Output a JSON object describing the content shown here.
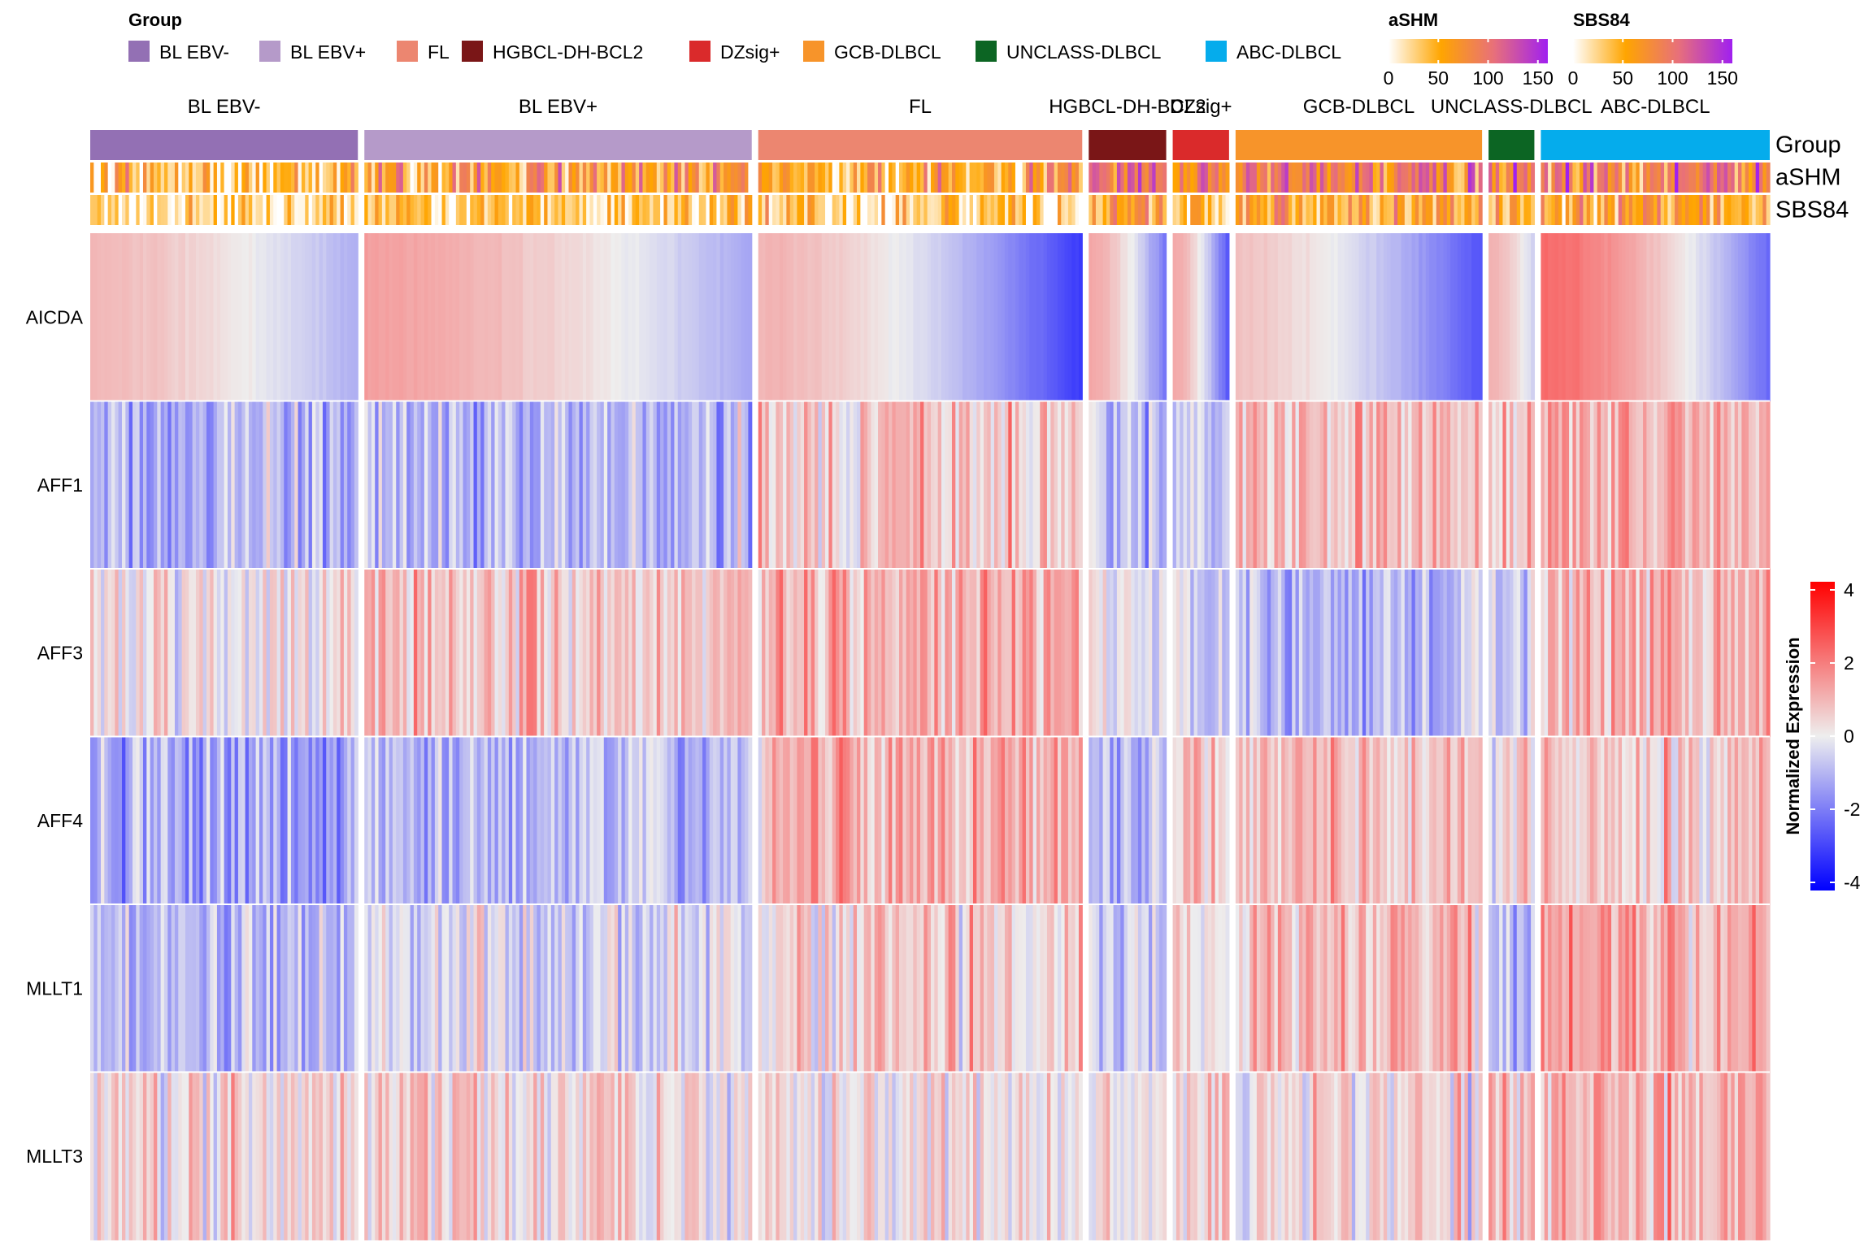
{
  "chart_data": {
    "type": "heatmap",
    "legends": {
      "group": {
        "title": "Group",
        "entries": [
          {
            "label": "BL EBV-",
            "color": "#9370B4"
          },
          {
            "label": "BL EBV+",
            "color": "#B59AC9"
          },
          {
            "label": "FL",
            "color": "#EC8670"
          },
          {
            "label": "HGBCL-DH-BCL2",
            "color": "#7A1617"
          },
          {
            "label": "DZsig+",
            "color": "#DA2A2B"
          },
          {
            "label": "GCB-DLBCL",
            "color": "#F7942A"
          },
          {
            "label": "UNCLASS-DLBCL",
            "color": "#0C6523"
          },
          {
            "label": "ABC-DLBCL",
            "color": "#05ACEC"
          }
        ]
      },
      "ashm": {
        "title": "aSHM",
        "ticks": [
          "0",
          "50",
          "100",
          "150"
        ],
        "range": [
          0,
          160
        ]
      },
      "sbs84": {
        "title": "SBS84",
        "ticks": [
          "0",
          "50",
          "100",
          "150"
        ],
        "range": [
          0,
          160
        ]
      },
      "expression": {
        "title": "Normalized Expression",
        "ticks": [
          "4",
          "2",
          "0",
          "-2",
          "-4"
        ],
        "range": [
          -4,
          4
        ]
      }
    },
    "colors": {
      "expr_low": "#0000FF",
      "expr_mid": "#EEEEEE",
      "expr_high": "#FF0000",
      "mut_low": "#FFFFFF",
      "mut_mid": "#FFA500",
      "mut_high": "#A020F0"
    },
    "column_groups": [
      {
        "label": "BL EBV-",
        "color": "#9370B4",
        "n": 76,
        "aicda": [
          0.9,
          -1.1
        ],
        "aff1": -1.0,
        "aff3": 0.2,
        "aff4": -1.3,
        "mllt1": -0.9,
        "mllt3": 0.4,
        "ashm": 35,
        "sbs84": 15
      },
      {
        "label": "BL EBV+",
        "color": "#B59AC9",
        "n": 110,
        "aicda": [
          1.3,
          -1.2
        ],
        "aff1": -0.9,
        "aff3": 0.7,
        "aff4": -0.9,
        "mllt1": -0.3,
        "mllt3": 0.4,
        "ashm": 60,
        "sbs84": 30
      },
      {
        "label": "FL",
        "color": "#EC8670",
        "n": 92,
        "aicda": [
          1.0,
          -3.0
        ],
        "aff1": 0.6,
        "aff3": 1.0,
        "aff4": 1.1,
        "mllt1": 0.5,
        "mllt3": 0.2,
        "ashm": 55,
        "sbs84": 30
      },
      {
        "label": "HGBCL-DH-BCL2",
        "color": "#7A1617",
        "n": 22,
        "aicda": [
          1.2,
          -2.0
        ],
        "aff1": -0.8,
        "aff3": 0.0,
        "aff4": -0.8,
        "mllt1": -0.5,
        "mllt3": 0.2,
        "ashm": 100,
        "sbs84": 55
      },
      {
        "label": "DZsig+",
        "color": "#DA2A2B",
        "n": 16,
        "aicda": [
          1.2,
          -2.5
        ],
        "aff1": -0.5,
        "aff3": -0.6,
        "aff4": 0.6,
        "mllt1": 0.3,
        "mllt3": 0.4,
        "ashm": 80,
        "sbs84": 45
      },
      {
        "label": "GCB-DLBCL",
        "color": "#F7942A",
        "n": 70,
        "aicda": [
          0.7,
          -2.6
        ],
        "aff1": 0.9,
        "aff3": -0.9,
        "aff4": 0.9,
        "mllt1": 0.8,
        "mllt3": 0.3,
        "ashm": 90,
        "sbs84": 55
      },
      {
        "label": "UNCLASS-DLBCL",
        "color": "#0C6523",
        "n": 13,
        "aicda": [
          1.0,
          -0.5
        ],
        "aff1": 0.6,
        "aff3": -0.6,
        "aff4": 0.2,
        "mllt1": -0.8,
        "mllt3": 0.8,
        "ashm": 90,
        "sbs84": 50
      },
      {
        "label": "ABC-DLBCL",
        "color": "#05ACEC",
        "n": 65,
        "aicda": [
          2.2,
          -2.2
        ],
        "aff1": 1.2,
        "aff3": 1.0,
        "aff4": 0.6,
        "mllt1": 1.2,
        "mllt3": 1.0,
        "ashm": 85,
        "sbs84": 55
      }
    ],
    "annotation_tracks": [
      "Group",
      "aSHM",
      "SBS84"
    ],
    "rows": [
      "AICDA",
      "AFF1",
      "AFF3",
      "AFF4",
      "MLLT1",
      "MLLT3"
    ]
  }
}
